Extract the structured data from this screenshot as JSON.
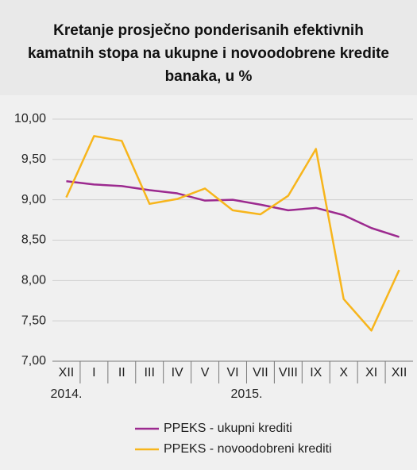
{
  "chart_data": {
    "type": "line",
    "title": "Kretanje prosječno ponderisanih efektivnih kamatnih stopa na ukupne i novoodobrene kredite banaka, u %",
    "categories": [
      "XII",
      "I",
      "II",
      "III",
      "IV",
      "V",
      "VI",
      "VII",
      "VIII",
      "IX",
      "X",
      "XI",
      "XII"
    ],
    "year_labels": [
      "2014.",
      "2015."
    ],
    "series": [
      {
        "name": "PPEKS - ukupni krediti",
        "color": "#9c2a8f",
        "values": [
          9.23,
          9.19,
          9.17,
          9.12,
          9.08,
          8.99,
          9.0,
          8.94,
          8.87,
          8.9,
          8.81,
          8.65,
          8.54
        ]
      },
      {
        "name": "PPEKS - novoodobreni krediti",
        "color": "#f7b51c",
        "values": [
          9.03,
          9.79,
          9.73,
          8.95,
          9.01,
          9.14,
          8.87,
          8.82,
          9.05,
          9.63,
          7.77,
          7.38,
          8.13
        ]
      }
    ],
    "ylim": [
      7,
      10
    ],
    "yticks": [
      {
        "value": 7,
        "label": "7,00"
      },
      {
        "value": 7.5,
        "label": "7,50"
      },
      {
        "value": 8,
        "label": "8,00"
      },
      {
        "value": 8.5,
        "label": "8,50"
      },
      {
        "value": 9,
        "label": "9,00"
      },
      {
        "value": 9.5,
        "label": "9,50"
      },
      {
        "value": 10,
        "label": "10,00"
      }
    ],
    "grid": true
  }
}
